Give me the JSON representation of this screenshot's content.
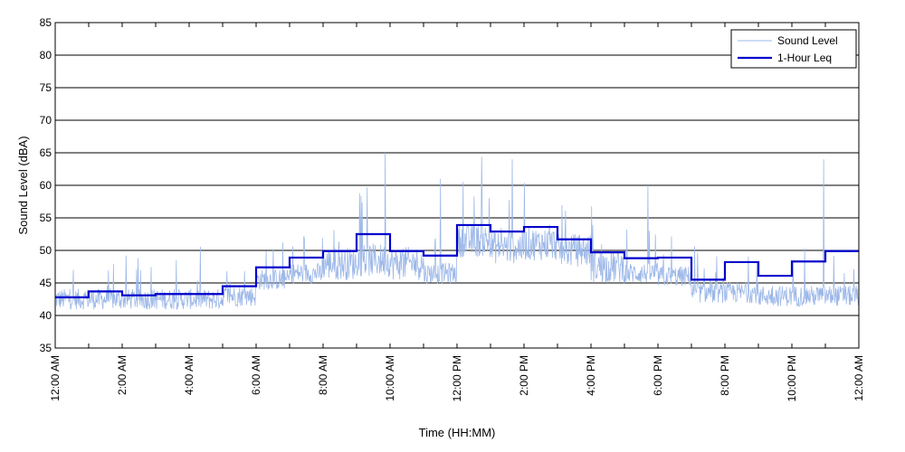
{
  "chart_data": {
    "type": "line",
    "title": "",
    "xlabel": "Time (HH:MM)",
    "ylabel": "Sound Level (dBA)",
    "ylim": [
      35,
      85
    ],
    "yticks": [
      35,
      40,
      45,
      50,
      55,
      60,
      65,
      70,
      75,
      80,
      85
    ],
    "xlim": [
      "12:00 AM",
      "12:00 AM"
    ],
    "x_hours_range": [
      0,
      24
    ],
    "xtick_labels": [
      "12:00 AM",
      "2:00 AM",
      "4:00 AM",
      "6:00 AM",
      "8:00 AM",
      "10:00 AM",
      "12:00 PM",
      "2:00 PM",
      "4:00 PM",
      "6:00 PM",
      "8:00 PM",
      "10:00 PM",
      "12:00 AM"
    ],
    "grid": "horizontal",
    "legend_position": "top-right",
    "colors": {
      "sound_level": "#9db8e8",
      "leq": "#0000cc"
    },
    "series": [
      {
        "name": "Sound Level",
        "style": "thin light-blue fluctuating trace",
        "hourly_baseline": [
          42.5,
          42.5,
          42.5,
          42.5,
          42.5,
          43.0,
          45.5,
          46.5,
          48.0,
          48.5,
          48.0,
          46.5,
          51.5,
          50.5,
          51.0,
          50.0,
          47.5,
          46.5,
          46.0,
          43.5,
          43.5,
          43.0,
          43.0,
          43.0
        ],
        "notable_peaks": [
          {
            "hour": 9.85,
            "value": 65
          },
          {
            "hour": 13.65,
            "value": 64
          },
          {
            "hour": 22.95,
            "value": 64
          },
          {
            "hour": 11.5,
            "value": 61
          },
          {
            "hour": 17.7,
            "value": 60
          }
        ]
      },
      {
        "name": "1-Hour Leq",
        "style": "thick dark-blue step line",
        "x_hours": [
          0,
          1,
          2,
          3,
          4,
          5,
          6,
          7,
          8,
          9,
          10,
          11,
          12,
          13,
          14,
          15,
          16,
          17,
          18,
          19,
          20,
          21,
          22,
          23
        ],
        "values": [
          42.8,
          43.7,
          43.1,
          43.3,
          43.3,
          44.5,
          47.4,
          48.9,
          49.9,
          52.5,
          49.9,
          49.2,
          53.9,
          52.9,
          53.6,
          51.7,
          49.7,
          48.8,
          48.9,
          45.5,
          48.2,
          46.1,
          48.3,
          49.9
        ]
      }
    ]
  }
}
